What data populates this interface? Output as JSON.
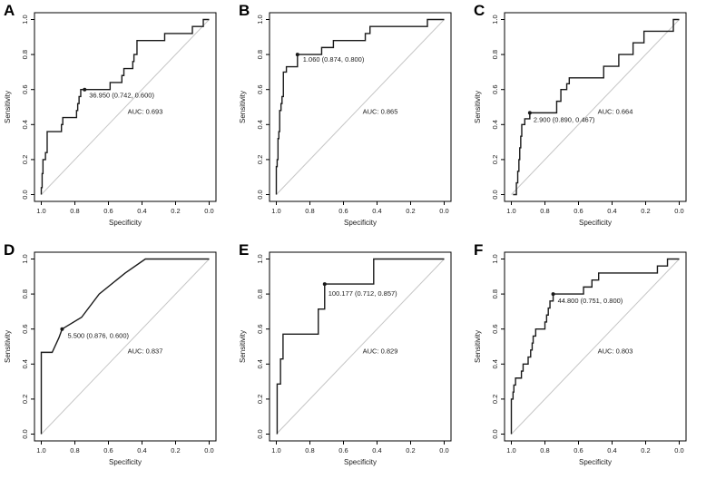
{
  "figure": {
    "background": "#ffffff",
    "curve_color": "#1a1a1a",
    "diagonal_color": "#c6c6c6",
    "text_color": "#1a1a1a",
    "axis": {
      "xlabel": "Specificity",
      "ylabel": "Sensitivity",
      "x_ticks": [
        1.0,
        0.8,
        0.6,
        0.4,
        0.2,
        0.0
      ],
      "x_tick_labels": [
        "1.0",
        "0.8",
        "0.6",
        "0.4",
        "0.2",
        "0.0"
      ],
      "y_ticks": [
        0.0,
        0.2,
        0.4,
        0.6,
        0.8,
        1.0
      ],
      "y_tick_labels": [
        "0.0",
        "0.2",
        "0.4",
        "0.6",
        "0.8",
        "1.0"
      ],
      "x_range": [
        1.0,
        0.0
      ],
      "y_range": [
        0.0,
        1.0
      ],
      "grid": false
    }
  },
  "chart_data": [
    {
      "type": "line",
      "panel": "A",
      "title": "",
      "xlabel": "Specificity",
      "ylabel": "Sensitivity",
      "threshold_label": "36.950 (0.742, 0.600)",
      "threshold_point": {
        "specificity": 0.742,
        "sensitivity": 0.6
      },
      "label_offset": [
        5,
        9
      ],
      "auc": 0.693,
      "auc_label": "AUC: 0.693",
      "curve": [
        [
          1.0,
          0.0
        ],
        [
          1.0,
          0.04
        ],
        [
          0.995,
          0.04
        ],
        [
          0.995,
          0.12
        ],
        [
          0.99,
          0.12
        ],
        [
          0.99,
          0.2
        ],
        [
          0.975,
          0.2
        ],
        [
          0.975,
          0.24
        ],
        [
          0.965,
          0.24
        ],
        [
          0.965,
          0.36
        ],
        [
          0.88,
          0.36
        ],
        [
          0.88,
          0.4
        ],
        [
          0.872,
          0.4
        ],
        [
          0.872,
          0.44
        ],
        [
          0.79,
          0.44
        ],
        [
          0.79,
          0.48
        ],
        [
          0.783,
          0.48
        ],
        [
          0.783,
          0.52
        ],
        [
          0.775,
          0.52
        ],
        [
          0.775,
          0.56
        ],
        [
          0.765,
          0.56
        ],
        [
          0.765,
          0.6
        ],
        [
          0.59,
          0.6
        ],
        [
          0.59,
          0.64
        ],
        [
          0.52,
          0.64
        ],
        [
          0.52,
          0.68
        ],
        [
          0.508,
          0.68
        ],
        [
          0.508,
          0.72
        ],
        [
          0.455,
          0.72
        ],
        [
          0.455,
          0.76
        ],
        [
          0.448,
          0.76
        ],
        [
          0.448,
          0.8
        ],
        [
          0.43,
          0.8
        ],
        [
          0.43,
          0.88
        ],
        [
          0.265,
          0.88
        ],
        [
          0.265,
          0.92
        ],
        [
          0.1,
          0.92
        ],
        [
          0.1,
          0.96
        ],
        [
          0.035,
          0.96
        ],
        [
          0.035,
          1.0
        ],
        [
          0.0,
          1.0
        ]
      ]
    },
    {
      "type": "line",
      "panel": "B",
      "title": "",
      "xlabel": "Specificity",
      "ylabel": "Sensitivity",
      "threshold_label": "1.060 (0.874, 0.800)",
      "threshold_point": {
        "specificity": 0.874,
        "sensitivity": 0.8
      },
      "label_offset": [
        6,
        8
      ],
      "auc": 0.865,
      "auc_label": "AUC: 0.865",
      "curve": [
        [
          1.0,
          0.0
        ],
        [
          1.0,
          0.16
        ],
        [
          0.995,
          0.16
        ],
        [
          0.995,
          0.2
        ],
        [
          0.99,
          0.2
        ],
        [
          0.99,
          0.32
        ],
        [
          0.985,
          0.32
        ],
        [
          0.985,
          0.36
        ],
        [
          0.98,
          0.36
        ],
        [
          0.98,
          0.48
        ],
        [
          0.972,
          0.48
        ],
        [
          0.972,
          0.52
        ],
        [
          0.966,
          0.52
        ],
        [
          0.966,
          0.56
        ],
        [
          0.958,
          0.56
        ],
        [
          0.958,
          0.7
        ],
        [
          0.94,
          0.7
        ],
        [
          0.94,
          0.73
        ],
        [
          0.874,
          0.73
        ],
        [
          0.874,
          0.8
        ],
        [
          0.73,
          0.8
        ],
        [
          0.73,
          0.84
        ],
        [
          0.66,
          0.84
        ],
        [
          0.66,
          0.88
        ],
        [
          0.47,
          0.88
        ],
        [
          0.47,
          0.92
        ],
        [
          0.442,
          0.92
        ],
        [
          0.442,
          0.96
        ],
        [
          0.1,
          0.96
        ],
        [
          0.1,
          1.0
        ],
        [
          0.0,
          1.0
        ]
      ]
    },
    {
      "type": "line",
      "panel": "C",
      "title": "",
      "xlabel": "Specificity",
      "ylabel": "Sensitivity",
      "threshold_label": "2.900 (0.890, 0.467)",
      "threshold_point": {
        "specificity": 0.89,
        "sensitivity": 0.467
      },
      "label_offset": [
        4,
        10
      ],
      "auc": 0.664,
      "auc_label": "AUC: 0.664",
      "curve": [
        [
          0.99,
          0.0
        ],
        [
          0.97,
          0.0
        ],
        [
          0.97,
          0.067
        ],
        [
          0.962,
          0.067
        ],
        [
          0.962,
          0.133
        ],
        [
          0.955,
          0.133
        ],
        [
          0.955,
          0.2
        ],
        [
          0.95,
          0.2
        ],
        [
          0.95,
          0.267
        ],
        [
          0.944,
          0.267
        ],
        [
          0.944,
          0.333
        ],
        [
          0.938,
          0.333
        ],
        [
          0.938,
          0.4
        ],
        [
          0.92,
          0.4
        ],
        [
          0.92,
          0.433
        ],
        [
          0.89,
          0.433
        ],
        [
          0.89,
          0.467
        ],
        [
          0.73,
          0.467
        ],
        [
          0.73,
          0.533
        ],
        [
          0.705,
          0.533
        ],
        [
          0.705,
          0.6
        ],
        [
          0.67,
          0.6
        ],
        [
          0.67,
          0.633
        ],
        [
          0.655,
          0.633
        ],
        [
          0.655,
          0.667
        ],
        [
          0.45,
          0.667
        ],
        [
          0.45,
          0.733
        ],
        [
          0.36,
          0.733
        ],
        [
          0.36,
          0.8
        ],
        [
          0.275,
          0.8
        ],
        [
          0.275,
          0.867
        ],
        [
          0.21,
          0.867
        ],
        [
          0.21,
          0.933
        ],
        [
          0.035,
          0.933
        ],
        [
          0.035,
          1.0
        ],
        [
          0.0,
          1.0
        ]
      ]
    },
    {
      "type": "line",
      "panel": "D",
      "title": "",
      "xlabel": "Specificity",
      "ylabel": "Sensitivity",
      "threshold_label": "5.500 (0.876, 0.600)",
      "threshold_point": {
        "specificity": 0.876,
        "sensitivity": 0.6
      },
      "label_offset": [
        6,
        10
      ],
      "auc": 0.837,
      "auc_label": "AUC: 0.837",
      "curve": [
        [
          1.0,
          0.0
        ],
        [
          1.0,
          0.467
        ],
        [
          0.935,
          0.467
        ],
        [
          0.895,
          0.55
        ],
        [
          0.876,
          0.6
        ],
        [
          0.76,
          0.667
        ],
        [
          0.655,
          0.8
        ],
        [
          0.5,
          0.92
        ],
        [
          0.38,
          1.0
        ],
        [
          0.0,
          1.0
        ]
      ]
    },
    {
      "type": "line",
      "panel": "E",
      "title": "",
      "xlabel": "Specificity",
      "ylabel": "Sensitivity",
      "threshold_label": "100.177 (0.712, 0.857)",
      "threshold_point": {
        "specificity": 0.712,
        "sensitivity": 0.857
      },
      "label_offset": [
        4,
        13
      ],
      "auc": 0.829,
      "auc_label": "AUC: 0.829",
      "curve": [
        [
          0.995,
          0.0
        ],
        [
          0.995,
          0.286
        ],
        [
          0.975,
          0.286
        ],
        [
          0.975,
          0.429
        ],
        [
          0.96,
          0.429
        ],
        [
          0.96,
          0.571
        ],
        [
          0.75,
          0.571
        ],
        [
          0.75,
          0.714
        ],
        [
          0.712,
          0.714
        ],
        [
          0.712,
          0.857
        ],
        [
          0.42,
          0.857
        ],
        [
          0.42,
          1.0
        ],
        [
          0.0,
          1.0
        ]
      ]
    },
    {
      "type": "line",
      "panel": "F",
      "title": "",
      "xlabel": "Specificity",
      "ylabel": "Sensitivity",
      "threshold_label": "44.800 (0.751, 0.800)",
      "threshold_point": {
        "specificity": 0.751,
        "sensitivity": 0.8
      },
      "label_offset": [
        5,
        10
      ],
      "auc": 0.803,
      "auc_label": "AUC: 0.803",
      "curve": [
        [
          1.0,
          0.0
        ],
        [
          1.0,
          0.2
        ],
        [
          0.99,
          0.2
        ],
        [
          0.99,
          0.24
        ],
        [
          0.985,
          0.24
        ],
        [
          0.985,
          0.28
        ],
        [
          0.975,
          0.28
        ],
        [
          0.975,
          0.32
        ],
        [
          0.94,
          0.32
        ],
        [
          0.94,
          0.36
        ],
        [
          0.93,
          0.36
        ],
        [
          0.93,
          0.4
        ],
        [
          0.9,
          0.4
        ],
        [
          0.9,
          0.44
        ],
        [
          0.885,
          0.44
        ],
        [
          0.885,
          0.48
        ],
        [
          0.876,
          0.48
        ],
        [
          0.876,
          0.52
        ],
        [
          0.87,
          0.52
        ],
        [
          0.87,
          0.56
        ],
        [
          0.855,
          0.56
        ],
        [
          0.855,
          0.6
        ],
        [
          0.8,
          0.6
        ],
        [
          0.8,
          0.64
        ],
        [
          0.79,
          0.64
        ],
        [
          0.79,
          0.68
        ],
        [
          0.78,
          0.68
        ],
        [
          0.78,
          0.72
        ],
        [
          0.77,
          0.72
        ],
        [
          0.77,
          0.76
        ],
        [
          0.751,
          0.76
        ],
        [
          0.751,
          0.8
        ],
        [
          0.57,
          0.8
        ],
        [
          0.57,
          0.84
        ],
        [
          0.52,
          0.84
        ],
        [
          0.52,
          0.88
        ],
        [
          0.48,
          0.88
        ],
        [
          0.48,
          0.92
        ],
        [
          0.13,
          0.92
        ],
        [
          0.13,
          0.96
        ],
        [
          0.07,
          0.96
        ],
        [
          0.07,
          1.0
        ],
        [
          0.0,
          1.0
        ]
      ]
    }
  ]
}
